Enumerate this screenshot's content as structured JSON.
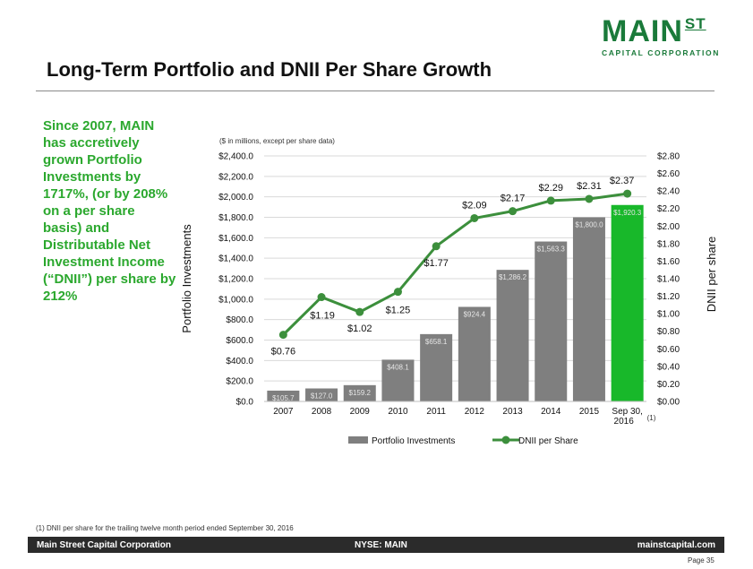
{
  "logo": {
    "main": "MAIN",
    "st": "ST",
    "sub": "CAPITAL CORPORATION"
  },
  "header": {
    "title": "Long-Term Portfolio and DNII Per Share Growth"
  },
  "sidebar": {
    "text": "Since 2007, MAIN has accretively grown Portfolio Investments by 1717%, (or by 208% on a per share basis) and Distributable Net Investment Income (“DNII”) per share by 212%"
  },
  "footnote": "(1)   DNII per share for the trailing twelve month period ended September 30, 2016",
  "footer": {
    "left": "Main Street Capital Corporation",
    "center": "NYSE: MAIN",
    "right": "mainstcapital.com"
  },
  "page_number": "Page  35",
  "colors": {
    "green": "#2ba82e",
    "highlight_bar": "#18b82a",
    "gray_bar": "#7f7f7f",
    "line": "#3c8f3c"
  },
  "chart_data": {
    "type": "bar",
    "note": "($ in millions, except per share data)",
    "categories": [
      "2007",
      "2008",
      "2009",
      "2010",
      "2011",
      "2012",
      "2013",
      "2014",
      "2015",
      "Sep 30, 2016"
    ],
    "category_footnote": "(1)",
    "ylabel_left": "Portfolio Investments",
    "ylabel_right": "DNII per share",
    "ylim_left": [
      0,
      2400
    ],
    "ylim_right": [
      0,
      2.8
    ],
    "yticks_left": [
      "$0.0",
      "$200.0",
      "$400.0",
      "$600.0",
      "$800.0",
      "$1,000.0",
      "$1,200.0",
      "$1,400.0",
      "$1,600.0",
      "$1,800.0",
      "$2,000.0",
      "$2,200.0",
      "$2,400.0"
    ],
    "yticks_right": [
      "$0.00",
      "$0.20",
      "$0.40",
      "$0.60",
      "$0.80",
      "$1.00",
      "$1.20",
      "$1.40",
      "$1.60",
      "$1.80",
      "$2.00",
      "$2.20",
      "$2.40",
      "$2.60",
      "$2.80"
    ],
    "series": [
      {
        "name": "Portfolio Investments",
        "type": "bar",
        "axis": "left",
        "values": [
          105.7,
          127.0,
          159.2,
          408.1,
          658.1,
          924.4,
          1286.2,
          1563.3,
          1800.0,
          1920.3
        ],
        "labels": [
          "$105.7",
          "$127.0",
          "$159.2",
          "$408.1",
          "$658.1",
          "$924.4",
          "$1,286.2",
          "$1,563.3",
          "$1,800.0",
          "$1,920.3"
        ]
      },
      {
        "name": "DNII per Share",
        "type": "line",
        "axis": "right",
        "values": [
          0.76,
          1.19,
          1.02,
          1.25,
          1.77,
          2.09,
          2.17,
          2.29,
          2.31,
          2.37
        ],
        "labels": [
          "$0.76",
          "$1.19",
          "$1.02",
          "$1.25",
          "$1.77",
          "$2.09",
          "$2.17",
          "$2.29",
          "$2.31",
          "$2.37"
        ]
      }
    ],
    "gridlines": true,
    "legend": "bottom"
  }
}
